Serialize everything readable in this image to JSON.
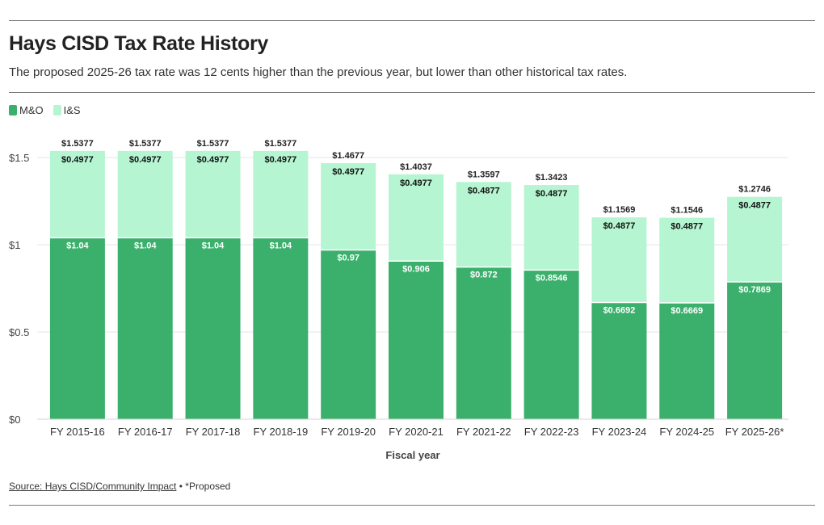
{
  "header": {
    "title": "Hays CISD Tax Rate History",
    "subtitle": "The proposed 2025-26 tax rate was 12 cents higher than the previous year, but lower than other historical tax rates."
  },
  "legend": [
    {
      "label": "M&O",
      "color": "#3bb06d"
    },
    {
      "label": "I&S",
      "color": "#b6f5d2"
    }
  ],
  "footer": {
    "source": "Source: Hays CISD/Community Impact",
    "separator": "•",
    "note": "*Proposed"
  },
  "chart_data": {
    "type": "bar",
    "stacked": true,
    "categories": [
      "FY 2015-16",
      "FY 2016-17",
      "FY 2017-18",
      "FY 2018-19",
      "FY 2019-20",
      "FY 2020-21",
      "FY 2021-22",
      "FY 2022-23",
      "FY 2023-24",
      "FY 2024-25",
      "FY 2025-26*"
    ],
    "series": [
      {
        "name": "M&O",
        "color": "#3bb06d",
        "values": [
          1.04,
          1.04,
          1.04,
          1.04,
          0.97,
          0.906,
          0.872,
          0.8546,
          0.6692,
          0.6669,
          0.7869
        ],
        "labels": [
          "$1.04",
          "$1.04",
          "$1.04",
          "$1.04",
          "$0.97",
          "$0.906",
          "$0.872",
          "$0.8546",
          "$0.6692",
          "$0.6669",
          "$0.7869"
        ]
      },
      {
        "name": "I&S",
        "color": "#b6f5d2",
        "values": [
          0.4977,
          0.4977,
          0.4977,
          0.4977,
          0.4977,
          0.4977,
          0.4877,
          0.4877,
          0.4877,
          0.4877,
          0.4877
        ],
        "labels": [
          "$0.4977",
          "$0.4977",
          "$0.4977",
          "$0.4977",
          "$0.4977",
          "$0.4977",
          "$0.4877",
          "$0.4877",
          "$0.4877",
          "$0.4877",
          "$0.4877"
        ]
      }
    ],
    "totals": [
      1.5377,
      1.5377,
      1.5377,
      1.5377,
      1.4677,
      1.4037,
      1.3597,
      1.3423,
      1.1569,
      1.1546,
      1.2746
    ],
    "total_labels": [
      "$1.5377",
      "$1.5377",
      "$1.5377",
      "$1.5377",
      "$1.4677",
      "$1.4037",
      "$1.3597",
      "$1.3423",
      "$1.1569",
      "$1.1546",
      "$1.2746"
    ],
    "title": "Hays CISD Tax Rate History",
    "xlabel": "Fiscal year",
    "ylabel": "",
    "ylim": [
      0,
      1.6
    ],
    "yticks": [
      0,
      0.5,
      1,
      1.5
    ],
    "ytick_labels": [
      "$0",
      "$0.5",
      "$1",
      "$1.5"
    ],
    "grid": true,
    "legend_position": "top-left"
  }
}
